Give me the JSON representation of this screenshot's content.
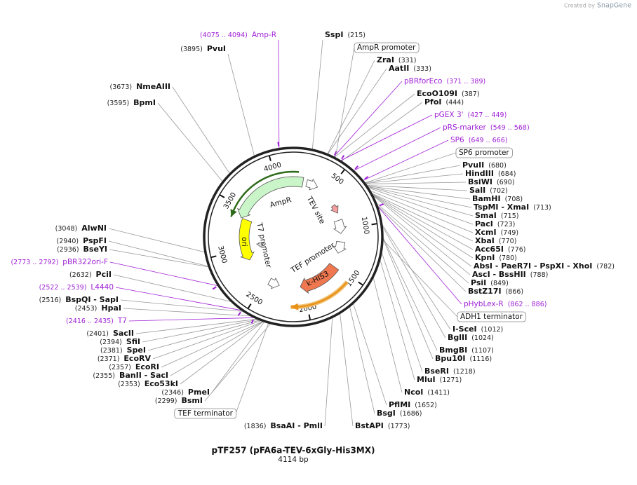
{
  "header": {
    "created_by": "Created by",
    "brand": "SnapGene"
  },
  "map": {
    "title": "pTF257 (pFA6a-TEV-6xGly-His3MX)",
    "size": {
      "value": 4114,
      "label": "4114 bp"
    },
    "ticks": [
      500,
      1000,
      1500,
      2000,
      2500,
      3000,
      3500,
      4000
    ],
    "inner_features": [
      "AmpR",
      "TEV site",
      "T7 promoter",
      "ori",
      "TEF promoter",
      "k-HIS3"
    ],
    "enzymes": [
      {
        "name": "SspI",
        "location": "(215)"
      },
      {
        "name": "ZraI",
        "location": "(331)"
      },
      {
        "name": "AatII",
        "location": "(333)"
      },
      {
        "name": "EcoO109I",
        "location": "(387)"
      },
      {
        "name": "PfoI",
        "location": "(444)"
      },
      {
        "name": "PvuII",
        "location": "(680)"
      },
      {
        "name": "HindIII",
        "location": "(684)"
      },
      {
        "name": "BsiWI",
        "location": "(690)"
      },
      {
        "name": "SalI",
        "location": "(702)"
      },
      {
        "name": "BamHI",
        "location": "(708)"
      },
      {
        "name": "TspMI - XmaI",
        "location": "(713)"
      },
      {
        "name": "SmaI",
        "location": "(715)"
      },
      {
        "name": "PacI",
        "location": "(723)"
      },
      {
        "name": "XcmI",
        "location": "(749)"
      },
      {
        "name": "XbaI",
        "location": "(770)"
      },
      {
        "name": "Acc65I",
        "location": "(776)"
      },
      {
        "name": "KpnI",
        "location": "(780)"
      },
      {
        "name": "AbsI - PaeR7I - PspXI - XhoI",
        "location": "(782)"
      },
      {
        "name": "AscI - BssHII",
        "location": "(788)"
      },
      {
        "name": "PsiI",
        "location": "(849)"
      },
      {
        "name": "BstZ17I",
        "location": "(866)"
      },
      {
        "name": "I-SceI",
        "location": "(1012)"
      },
      {
        "name": "BglII",
        "location": "(1024)"
      },
      {
        "name": "BmgBI",
        "location": "(1107)"
      },
      {
        "name": "Bpu10I",
        "location": "(1116)"
      },
      {
        "name": "BseRI",
        "location": "(1218)"
      },
      {
        "name": "MluI",
        "location": "(1271)"
      },
      {
        "name": "NcoI",
        "location": "(1411)"
      },
      {
        "name": "PflMI",
        "location": "(1652)"
      },
      {
        "name": "BsgI",
        "location": "(1686)"
      },
      {
        "name": "BstAPI",
        "location": "(1773)"
      },
      {
        "name": "BsaAI - PmlI",
        "location": "(1836)"
      },
      {
        "name": "BsmI",
        "location": "(2299)"
      },
      {
        "name": "PmeI",
        "location": "(2346)"
      },
      {
        "name": "Eco53kI",
        "location": "(2353)"
      },
      {
        "name": "BanII - SacI",
        "location": "(2355)"
      },
      {
        "name": "EcoRI",
        "location": "(2357)"
      },
      {
        "name": "EcoRV",
        "location": "(2371)"
      },
      {
        "name": "SpeI",
        "location": "(2381)"
      },
      {
        "name": "SfiI",
        "location": "(2394)"
      },
      {
        "name": "SacII",
        "location": "(2401)"
      },
      {
        "name": "HpaI",
        "location": "(2453)"
      },
      {
        "name": "BspQI - SapI",
        "location": "(2516)"
      },
      {
        "name": "PciI",
        "location": "(2632)"
      },
      {
        "name": "BseYI",
        "location": "(2936)"
      },
      {
        "name": "PspFI",
        "location": "(2940)"
      },
      {
        "name": "AlwNI",
        "location": "(3048)"
      },
      {
        "name": "BpmI",
        "location": "(3595)"
      },
      {
        "name": "NmeAIII",
        "location": "(3673)"
      },
      {
        "name": "PvuI",
        "location": "(3895)"
      }
    ],
    "primers": [
      {
        "name": "pBRforEco",
        "location": "(371 .. 389)"
      },
      {
        "name": "pGEX 3'",
        "location": "(427 .. 449)"
      },
      {
        "name": "pRS-marker",
        "location": "(549 .. 568)"
      },
      {
        "name": "SP6",
        "location": "(649 .. 666)"
      },
      {
        "name": "pHybLex-R",
        "location": "(862 .. 886)"
      },
      {
        "name": "T7",
        "location": "(2416 .. 2435)"
      },
      {
        "name": "L4440",
        "location": "(2522 .. 2539)"
      },
      {
        "name": "pBR322ori-F",
        "location": "(2773 .. 2792)"
      },
      {
        "name": "Amp-R",
        "location": "(4075 .. 4094)"
      }
    ],
    "features": [
      "AmpR promoter",
      "SP6 promoter",
      "ADH1 terminator",
      "TEF terminator"
    ]
  }
}
